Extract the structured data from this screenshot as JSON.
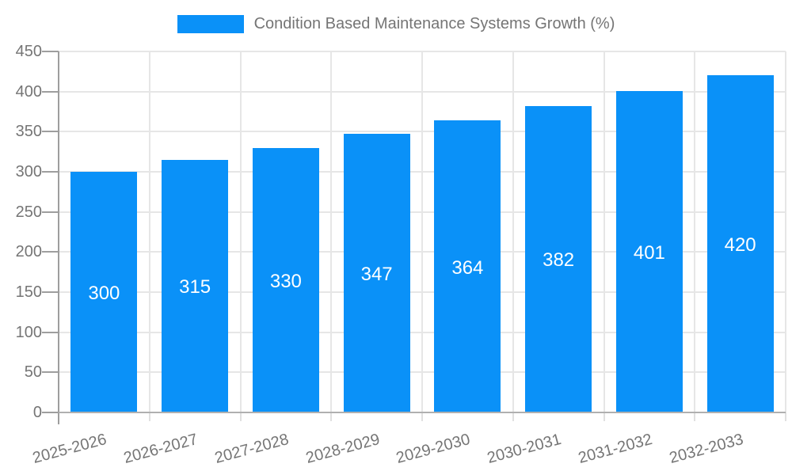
{
  "chart_data": {
    "type": "bar",
    "title": "Condition Based Maintenance Systems Growth (%)",
    "series_name": "Condition Based Maintenance Systems Growth (%)",
    "categories": [
      "2025-2026",
      "2026-2027",
      "2027-2028",
      "2028-2029",
      "2029-2030",
      "2030-2031",
      "2031-2032",
      "2032-2033"
    ],
    "values": [
      300,
      315,
      330,
      347,
      364,
      382,
      401,
      420
    ],
    "xlabel": "",
    "ylabel": "",
    "ylim": [
      0,
      450
    ],
    "yticks": [
      0,
      50,
      100,
      150,
      200,
      250,
      300,
      350,
      400,
      450
    ],
    "grid": true,
    "legend_position": "top-center",
    "x_tick_rotation_deg": -15,
    "bar_value_labels_shown": true,
    "colors": {
      "bar": "#0a91f8",
      "bar_value_label": "#ffffff",
      "axis_text": "#757575",
      "legend_text": "#757575",
      "axis_line": "#9e9e9e",
      "baseline": "#b0b0b0",
      "gridline": "#e6e6e6",
      "minor_tick": "#e0e0e0",
      "background": "#ffffff"
    }
  }
}
